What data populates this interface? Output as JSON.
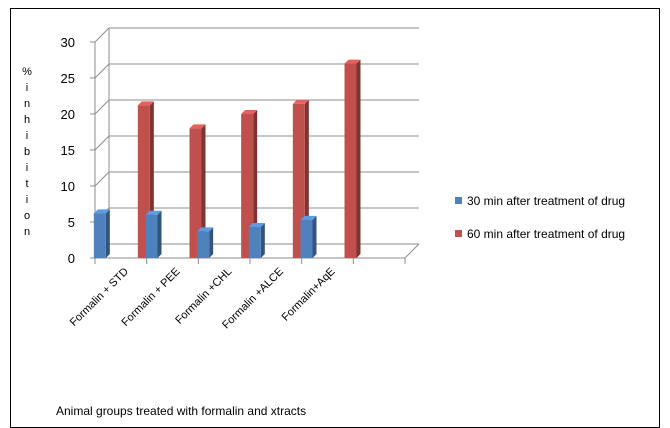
{
  "chart_data": {
    "type": "bar",
    "style": "3d-clustered-column",
    "title": "",
    "xlabel": "Animal groups treated with formalin and xtracts",
    "ylabel": "% inhibition",
    "categories": [
      "Formalin + STD",
      "Formalin + PEE",
      "Formalin +CHL",
      "Formalin +ALCE",
      "Formalin+AqE",
      ""
    ],
    "series": [
      {
        "name": "30 min after treatment of drug",
        "color": "#4F81BD",
        "values": [
          6.2,
          6.0,
          3.7,
          4.3,
          5.3,
          null
        ]
      },
      {
        "name": "60 min after treatment of drug",
        "color": "#C0504D",
        "values": [
          21.2,
          18.0,
          20.0,
          21.4,
          27.0,
          null
        ]
      }
    ],
    "ylim": [
      0,
      30
    ],
    "yticks": [
      0,
      5,
      10,
      15,
      20,
      25,
      30
    ],
    "grid": true,
    "legend_position": "right"
  }
}
